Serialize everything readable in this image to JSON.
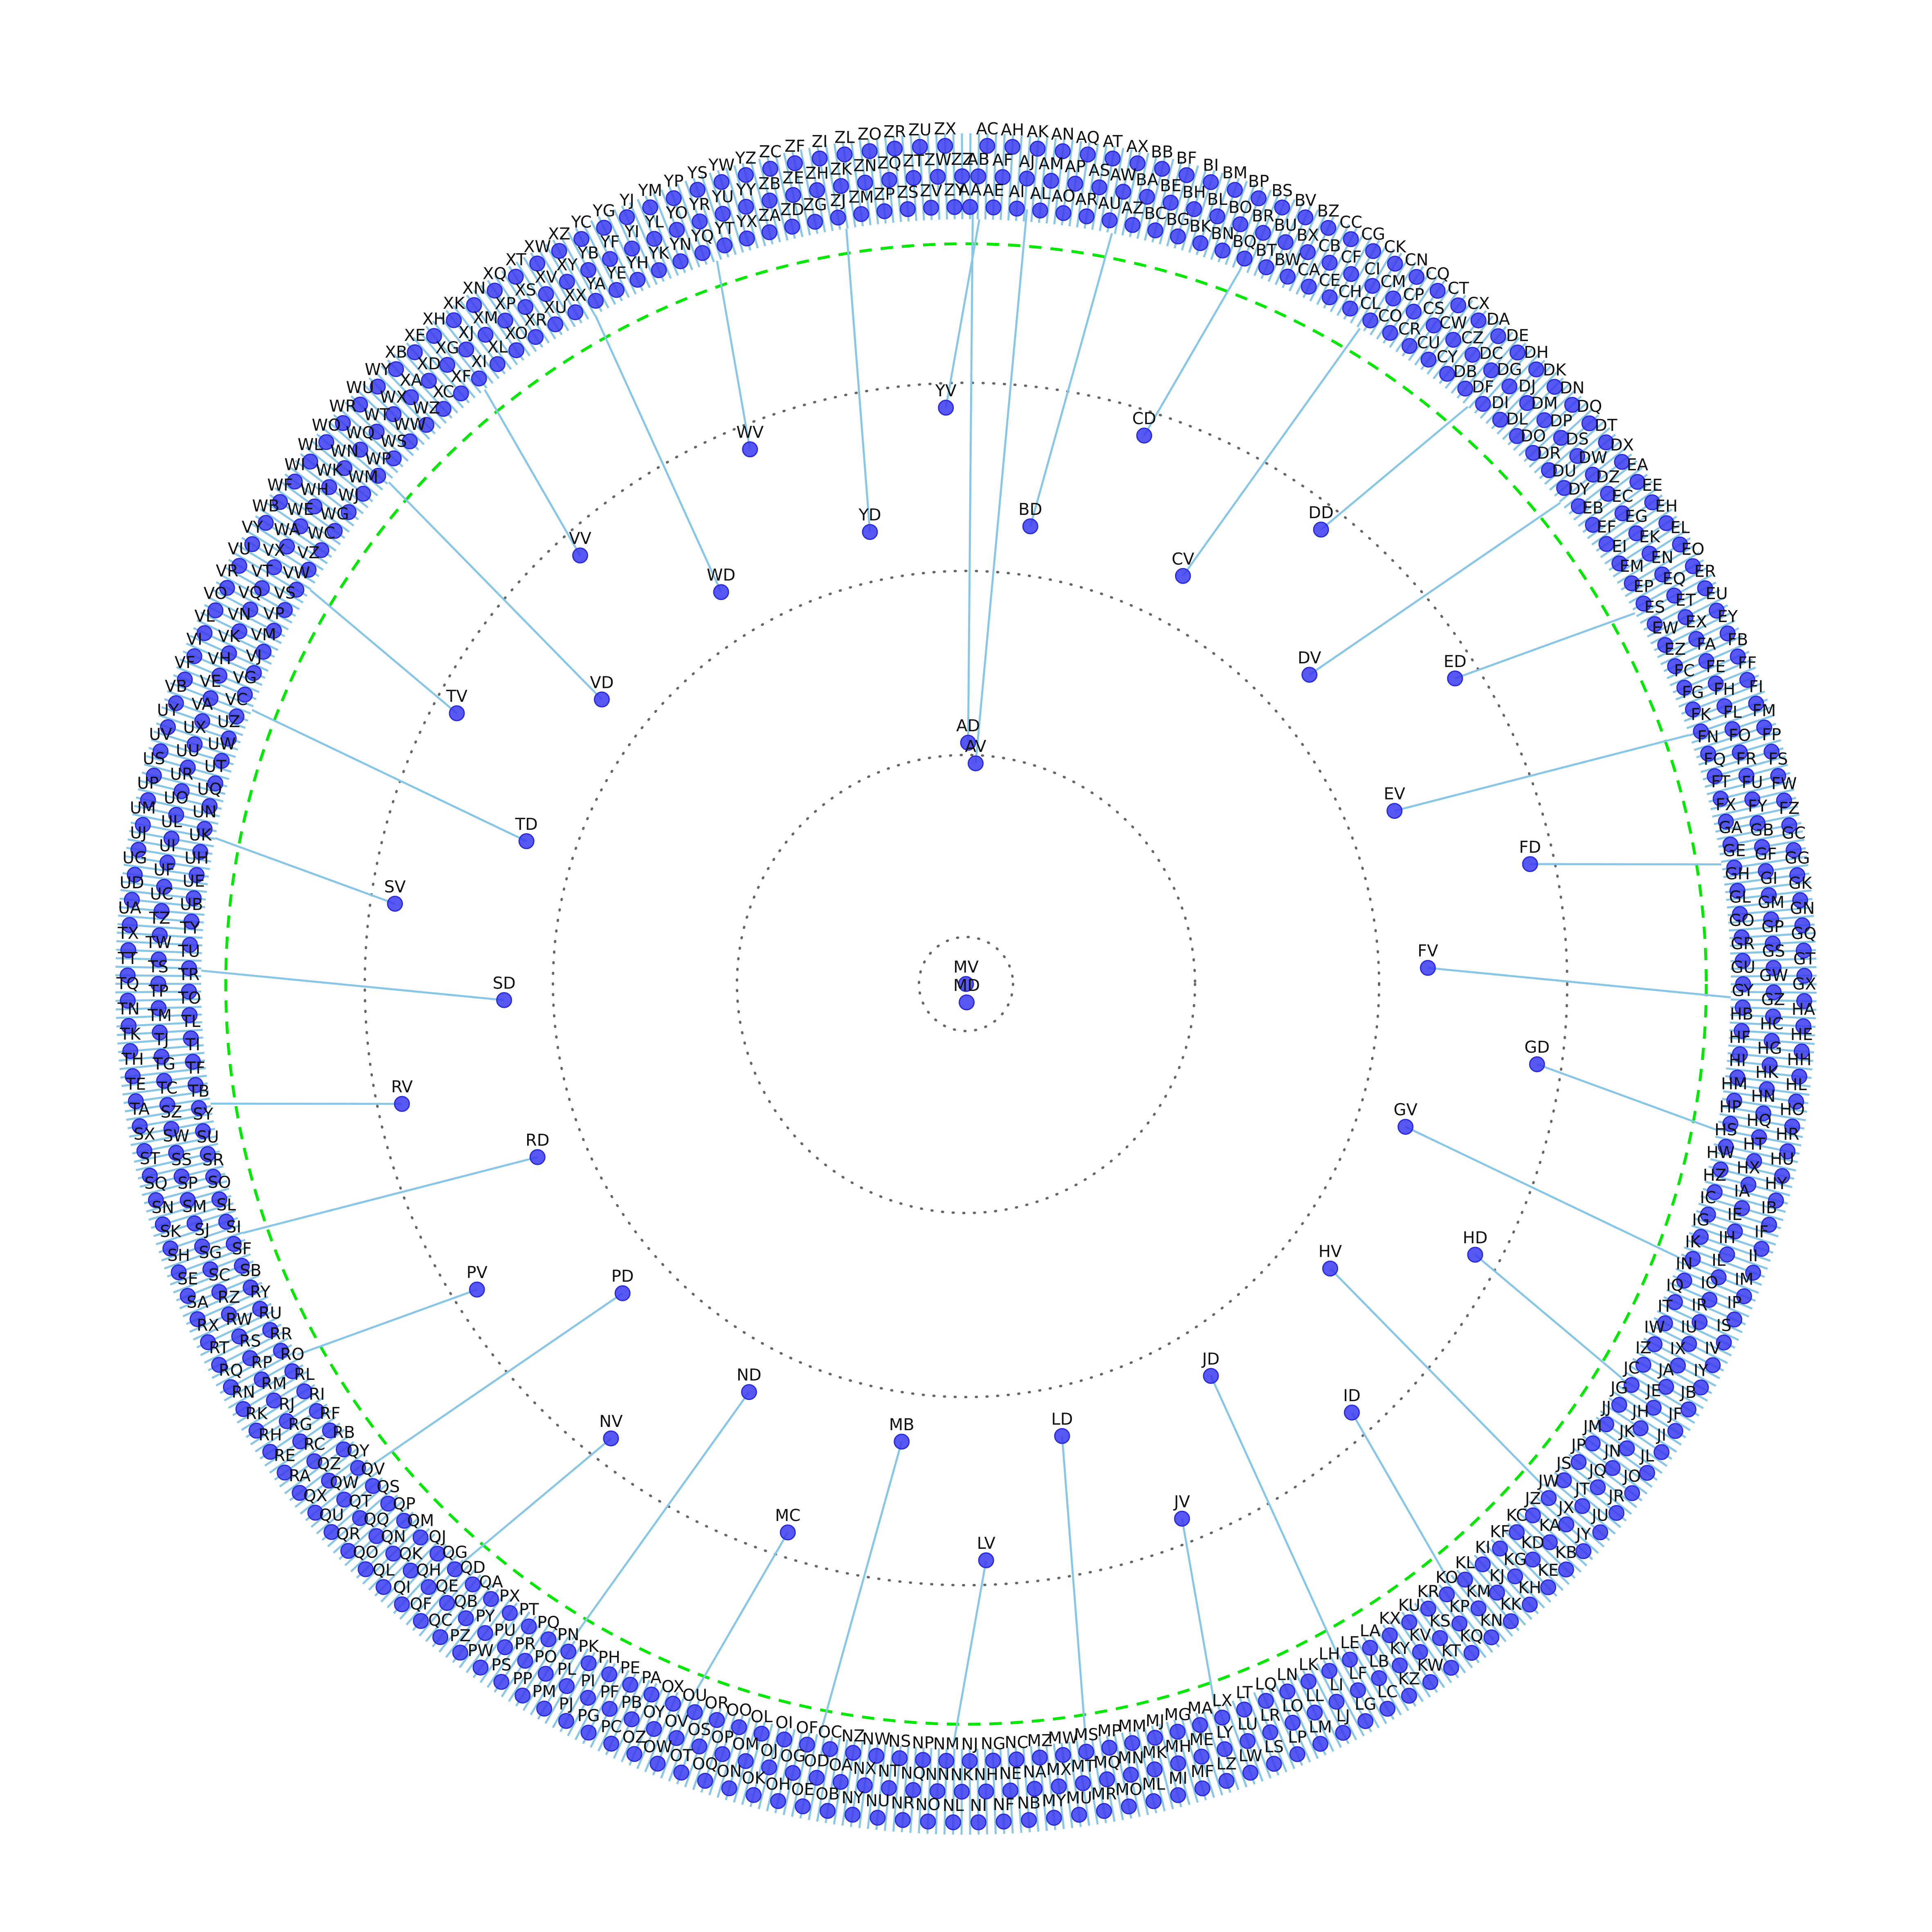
{
  "colors": {
    "background": "#ffffff",
    "edge": "#87c6e6",
    "node": "#3a3af0",
    "label": "#111111",
    "depth_ring": "#666666",
    "highlight_ring": "#00e800"
  },
  "diagram": {
    "type": "radial-tree",
    "root_labels": [
      "MV",
      "MD"
    ],
    "inner_labels": [
      "AD",
      "AV"
    ],
    "middle_labels": [
      "BD",
      "CD",
      "CV",
      "DD",
      "DV",
      "ED",
      "EV",
      "FD",
      "FV",
      "GD",
      "GV",
      "HD",
      "HV",
      "ID",
      "JD",
      "JV",
      "LD",
      "LV",
      "MB",
      "MC",
      "ND",
      "NV",
      "PD",
      "PV",
      "RD",
      "RV",
      "SD",
      "SV",
      "TD",
      "TV",
      "VD",
      "VV",
      "WD",
      "WV",
      "YD",
      "YV"
    ],
    "outer_labels": [
      "AA",
      "AB",
      "AC",
      "AE",
      "AF",
      "AH",
      "AI",
      "AJ",
      "AK",
      "AL",
      "AM",
      "AN",
      "AO",
      "AP",
      "AQ",
      "AR",
      "AS",
      "AT",
      "AU",
      "AW",
      "AX",
      "AZ",
      "BA",
      "BB",
      "BC",
      "BE",
      "BF",
      "BG",
      "BH",
      "BI",
      "BK",
      "BL",
      "BM",
      "BN",
      "BO",
      "BP",
      "BQ",
      "BR",
      "BS",
      "BT",
      "BU",
      "BV",
      "BW",
      "BX",
      "BZ",
      "CA",
      "CB",
      "CC",
      "CE",
      "CF",
      "CG",
      "CH",
      "CI",
      "CK",
      "CL",
      "CM",
      "CN",
      "CO",
      "CP",
      "CQ",
      "CR",
      "CS",
      "CT",
      "CU",
      "CW",
      "CX",
      "CY",
      "CZ",
      "DA",
      "DB",
      "DC",
      "DE",
      "DF",
      "DG",
      "DH",
      "DI",
      "DJ",
      "DK",
      "DL",
      "DM",
      "DN",
      "DO",
      "DP",
      "DQ",
      "DR",
      "DS",
      "DT",
      "DU",
      "DW",
      "DX",
      "DY",
      "DZ",
      "EA",
      "EB",
      "EC",
      "EE",
      "EF",
      "EG",
      "EH",
      "EI",
      "EK",
      "EL",
      "EM",
      "EN",
      "EO",
      "EP",
      "EQ",
      "ER",
      "ES",
      "ET",
      "EU",
      "EW",
      "EX",
      "EY",
      "EZ",
      "FA",
      "FB",
      "FC",
      "FE",
      "FF",
      "FG",
      "FH",
      "FI",
      "FK",
      "FL",
      "FM",
      "FN",
      "FO",
      "FP",
      "FQ",
      "FR",
      "FS",
      "FT",
      "FU",
      "FW",
      "FX",
      "FY",
      "FZ",
      "GA",
      "GB",
      "GC",
      "GE",
      "GF",
      "GG",
      "GH",
      "GI",
      "GK",
      "GL",
      "GM",
      "GN",
      "GO",
      "GP",
      "GQ",
      "GR",
      "GS",
      "GT",
      "GU",
      "GW",
      "GX",
      "GY",
      "GZ",
      "HA",
      "HB",
      "HC",
      "HE",
      "HF",
      "HG",
      "HH",
      "HI",
      "HK",
      "HL",
      "HM",
      "HN",
      "HO",
      "HP",
      "HQ",
      "HR",
      "HS",
      "HT",
      "HU",
      "HW",
      "HX",
      "HY",
      "HZ",
      "IA",
      "IB",
      "IC",
      "IE",
      "IF",
      "IG",
      "IH",
      "II",
      "IK",
      "IL",
      "IM",
      "IN",
      "IO",
      "IP",
      "IQ",
      "IR",
      "IS",
      "IT",
      "IU",
      "IV",
      "IW",
      "IX",
      "IY",
      "IZ",
      "JA",
      "JB",
      "JC",
      "JE",
      "JF",
      "JG",
      "JH",
      "JI",
      "JJ",
      "JK",
      "JL",
      "JM",
      "JN",
      "JO",
      "JP",
      "JQ",
      "JR",
      "JS",
      "JT",
      "JU",
      "JW",
      "JX",
      "JY",
      "JZ",
      "KA",
      "KB",
      "KC",
      "KD",
      "KE",
      "KF",
      "KG",
      "KH",
      "KI",
      "KJ",
      "KK",
      "KL",
      "KM",
      "KN",
      "KO",
      "KP",
      "KQ",
      "KR",
      "KS",
      "KT",
      "KU",
      "KV",
      "KW",
      "KX",
      "KY",
      "KZ",
      "LA",
      "LB",
      "LC",
      "LE",
      "LF",
      "LG",
      "LH",
      "LI",
      "LJ",
      "LK",
      "LL",
      "LM",
      "LN",
      "LO",
      "LP",
      "LQ",
      "LR",
      "LS",
      "LT",
      "LU",
      "LW",
      "LX",
      "LY",
      "LZ",
      "MA",
      "ME",
      "MF",
      "MG",
      "MH",
      "MI",
      "MJ",
      "MK",
      "ML",
      "MM",
      "MN",
      "MO",
      "MP",
      "MQ",
      "MR",
      "MS",
      "MT",
      "MU",
      "MW",
      "MX",
      "MY",
      "MZ",
      "NA",
      "NB",
      "NC",
      "NE",
      "NF",
      "NG",
      "NH",
      "NI",
      "NJ",
      "NK",
      "NL",
      "NM",
      "NN",
      "NO",
      "NP",
      "NQ",
      "NR",
      "NS",
      "NT",
      "NU",
      "NW",
      "NX",
      "NY",
      "NZ",
      "OA",
      "OB",
      "OC",
      "OD",
      "OE",
      "OF",
      "OG",
      "OH",
      "OI",
      "OJ",
      "OK",
      "OL",
      "OM",
      "ON",
      "OO",
      "OP",
      "OQ",
      "OR",
      "OS",
      "OT",
      "OU",
      "OV",
      "OW",
      "OX",
      "OY",
      "OZ",
      "PA",
      "PB",
      "PC",
      "PE",
      "PF",
      "PG",
      "PH",
      "PI",
      "PJ",
      "PK",
      "PL",
      "PM",
      "PN",
      "PO",
      "PP",
      "PQ",
      "PR",
      "PS",
      "PT",
      "PU",
      "PW",
      "PX",
      "PY",
      "PZ",
      "QA",
      "QB",
      "QC",
      "QD",
      "QE",
      "QF",
      "QG",
      "QH",
      "QI",
      "QJ",
      "QK",
      "QL",
      "QM",
      "QN",
      "QO",
      "QP",
      "QQ",
      "QR",
      "QS",
      "QT",
      "QU",
      "QV",
      "QW",
      "QX",
      "QY",
      "QZ",
      "RA",
      "RB",
      "RC",
      "RE",
      "RF",
      "RG",
      "RH",
      "RI",
      "RJ",
      "RK",
      "RL",
      "RM",
      "RN",
      "RO",
      "RP",
      "RQ",
      "RR",
      "RS",
      "RT",
      "RU",
      "RW",
      "RX",
      "RY",
      "RZ",
      "SA",
      "SB",
      "SC",
      "SE",
      "SF",
      "SG",
      "SH",
      "SI",
      "SJ",
      "SK",
      "SL",
      "SM",
      "SN",
      "SO",
      "SP",
      "SQ",
      "SR",
      "SS",
      "ST",
      "SU",
      "SW",
      "SX",
      "SY",
      "SZ",
      "TA",
      "TB",
      "TC",
      "TE",
      "TF",
      "TG",
      "TH",
      "TI",
      "TJ",
      "TK",
      "TL",
      "TM",
      "TN",
      "TO",
      "TP",
      "TQ",
      "TR",
      "TS",
      "TT",
      "TU",
      "TW",
      "TX",
      "TY",
      "TZ",
      "UA",
      "UB",
      "UC",
      "UD",
      "UE",
      "UF",
      "UG",
      "UH",
      "UI",
      "UJ",
      "UK",
      "UL",
      "UM",
      "UN",
      "UO",
      "UP",
      "UQ",
      "UR",
      "US",
      "UT",
      "UU",
      "UV",
      "UW",
      "UX",
      "UY",
      "UZ",
      "VA",
      "VB",
      "VC",
      "VE",
      "VF",
      "VG",
      "VH",
      "VI",
      "VJ",
      "VK",
      "VL",
      "VM",
      "VN",
      "VO",
      "VP",
      "VQ",
      "VR",
      "VS",
      "VT",
      "VU",
      "VW",
      "VX",
      "VY",
      "VZ",
      "WA",
      "WB",
      "WC",
      "WE",
      "WF",
      "WG",
      "WH",
      "WI",
      "WJ",
      "WK",
      "WL",
      "WM",
      "WN",
      "WO",
      "WP",
      "WQ",
      "WR",
      "WS",
      "WT",
      "WU",
      "WW",
      "WX",
      "WY",
      "WZ",
      "XA",
      "XB",
      "XC",
      "XD",
      "XE",
      "XF",
      "XG",
      "XH",
      "XI",
      "XJ",
      "XK",
      "XL",
      "XM",
      "XN",
      "XO",
      "XP",
      "XQ",
      "XR",
      "XS",
      "XT",
      "XU",
      "XV",
      "XW",
      "XX",
      "XY",
      "XZ",
      "YA",
      "YB",
      "YC",
      "YE",
      "YF",
      "YG",
      "YH",
      "YI",
      "YJ",
      "YK",
      "YL",
      "YM",
      "YN",
      "YO",
      "YP",
      "YQ",
      "YR",
      "YS",
      "YT",
      "YU",
      "YW",
      "YX",
      "YY",
      "YZ",
      "ZA",
      "ZB",
      "ZC",
      "ZD",
      "ZE",
      "ZF",
      "ZG",
      "ZH",
      "ZI",
      "ZJ",
      "ZK",
      "ZL",
      "ZM",
      "ZN",
      "ZO",
      "ZP",
      "ZQ",
      "ZR",
      "ZS",
      "ZT",
      "ZU",
      "ZV",
      "ZW",
      "ZX",
      "ZY",
      "ZZ"
    ]
  }
}
